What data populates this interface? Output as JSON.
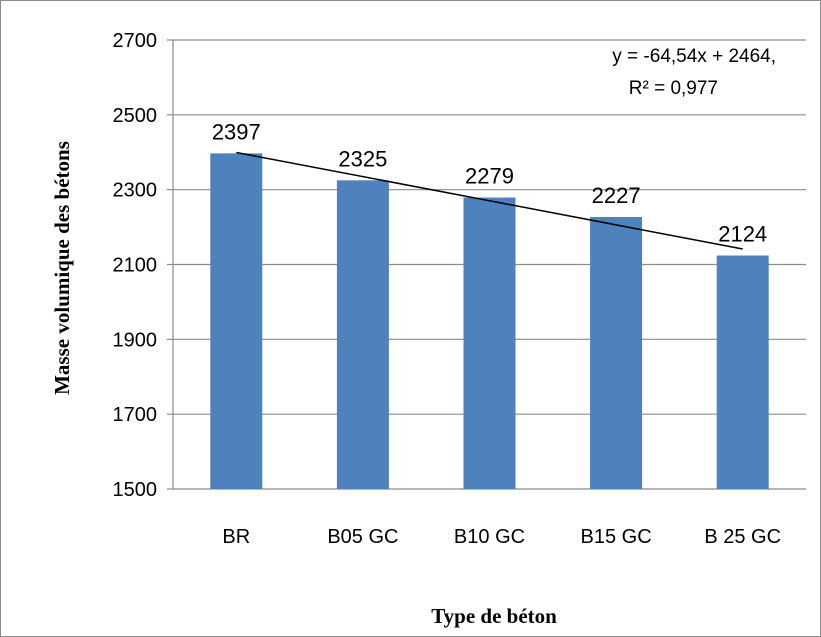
{
  "chart_data": {
    "type": "bar",
    "categories": [
      "BR",
      "B05 GC",
      "B10 GC",
      "B15 GC",
      "B 25 GC"
    ],
    "values": [
      2397,
      2325,
      2279,
      2227,
      2124
    ],
    "data_labels": [
      "2397",
      "2325",
      "2279",
      "2227",
      "2124"
    ],
    "xlabel": "Type de béton",
    "ylabel": "Masse volumique des bétons",
    "ylim": [
      1500,
      2700
    ],
    "yticks": [
      1500,
      1700,
      1900,
      2100,
      2300,
      2500,
      2700
    ],
    "bar_color": "#4f81bd",
    "grid": true,
    "trendline": {
      "type": "linear",
      "slope": -64.54,
      "intercept": 2464,
      "equation_line1": "y = -64,54x + 2464,",
      "equation_line2": "R² = 0,977"
    }
  }
}
